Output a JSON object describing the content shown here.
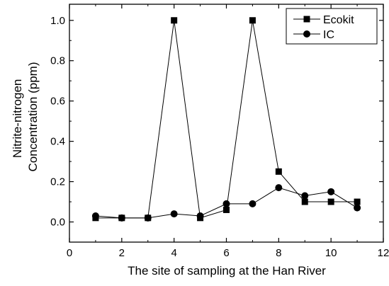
{
  "chart_data": {
    "type": "line",
    "xlabel": "The site of sampling at the Han River",
    "ylabel_lines": [
      "Nitrite-nitrogen",
      "Concentration (ppm)"
    ],
    "xlim": [
      0,
      12
    ],
    "ylim": [
      -0.1,
      1.08
    ],
    "xticks": [
      0,
      2,
      4,
      6,
      8,
      10,
      12
    ],
    "xtick_labels": [
      "0",
      "2",
      "4",
      "6",
      "8",
      "10",
      "12"
    ],
    "yticks": [
      0.0,
      0.2,
      0.4,
      0.6,
      0.8,
      1.0
    ],
    "ytick_labels": [
      "0.0",
      "0.2",
      "0.4",
      "0.6",
      "0.8",
      "1.0"
    ],
    "legend_position": "top-right",
    "grid": false,
    "series": [
      {
        "name": "Ecokit",
        "marker": "square",
        "x": [
          1,
          2,
          3,
          4,
          5,
          6,
          7,
          8,
          9,
          10,
          11
        ],
        "y": [
          0.02,
          0.02,
          0.02,
          1.0,
          0.02,
          0.06,
          1.0,
          0.25,
          0.1,
          0.1,
          0.1
        ]
      },
      {
        "name": "IC",
        "marker": "circle",
        "x": [
          1,
          2,
          3,
          4,
          5,
          6,
          7,
          8,
          9,
          10,
          11
        ],
        "y": [
          0.03,
          0.02,
          0.02,
          0.04,
          0.03,
          0.09,
          0.09,
          0.17,
          0.13,
          0.15,
          0.07
        ]
      }
    ]
  }
}
